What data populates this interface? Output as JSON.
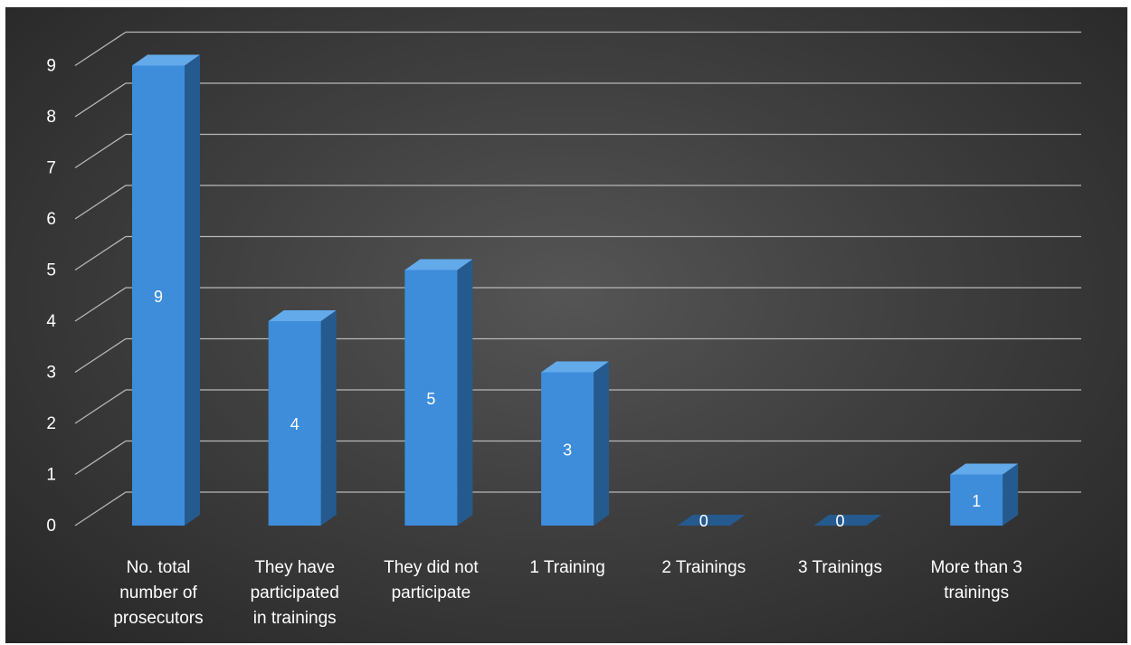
{
  "chart_data": {
    "type": "bar",
    "style": "3d-column",
    "categories": [
      "No. total number of prosecutors",
      "They have participated in trainings",
      "They did not participate",
      "1 Training",
      "2 Trainings",
      "3 Trainings",
      "More than 3 trainings"
    ],
    "category_lines": [
      [
        "No. total",
        "number of",
        "prosecutors"
      ],
      [
        "They have",
        "participated",
        "in trainings"
      ],
      [
        "They did not",
        "participate"
      ],
      [
        "1 Training"
      ],
      [
        "2 Trainings"
      ],
      [
        "3 Trainings"
      ],
      [
        "More than 3",
        "trainings"
      ]
    ],
    "values": [
      9,
      4,
      5,
      3,
      0,
      0,
      1
    ],
    "data_labels": [
      "9",
      "4",
      "5",
      "3",
      "0",
      "0",
      "1"
    ],
    "ylim": [
      0,
      9
    ],
    "yticks": [
      "0",
      "1",
      "2",
      "3",
      "4",
      "5",
      "6",
      "7",
      "8",
      "9"
    ],
    "grid": true,
    "legend": "none",
    "colors": {
      "bar_front": "#3d8ddb",
      "bar_side": "#255a8f",
      "bar_top": "#63aaea",
      "background": "#3f3f3f",
      "gridline": "#b8b8b8",
      "text": "#ffffff"
    }
  }
}
